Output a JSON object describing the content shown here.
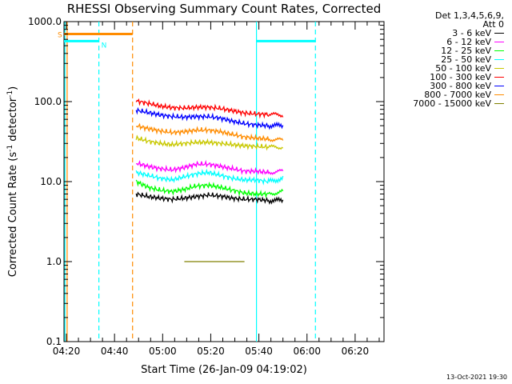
{
  "chart_data": {
    "type": "line",
    "title": "RHESSI Observing Summary Count Rates, Corrected",
    "xlabel": "Start Time (26-Jan-09 04:19:02)",
    "ylabel_main": "Corrected Count Rate (s",
    "ylabel_sup1": "-1",
    "ylabel_mid": " detector",
    "ylabel_sup2": "-1",
    "ylabel_end": ")",
    "y_scale": "log",
    "ylim": [
      0.1,
      1000
    ],
    "xlim_minutes": [
      0,
      133
    ],
    "x_ticks": [
      {
        "label": "04:20",
        "minute": 1
      },
      {
        "label": "04:40",
        "minute": 21
      },
      {
        "label": "05:00",
        "minute": 41
      },
      {
        "label": "05:20",
        "minute": 61
      },
      {
        "label": "05:40",
        "minute": 81
      },
      {
        "label": "06:00",
        "minute": 101
      },
      {
        "label": "06:20",
        "minute": 121
      }
    ],
    "y_ticks": [
      {
        "label": "0.1",
        "value": 0.1
      },
      {
        "label": "1.0",
        "value": 1
      },
      {
        "label": "10.0",
        "value": 10
      },
      {
        "label": "100.0",
        "value": 100
      },
      {
        "label": "1000.0",
        "value": 1000
      }
    ],
    "legend_header": [
      "Det 1,3,4,5,6,9,",
      "Att 0"
    ],
    "legend_position": "right",
    "series": [
      {
        "name": "3 - 6 keV",
        "color": "#000000",
        "values": [
          7.0,
          6.5,
          6.2,
          6.0,
          6.2,
          6.5,
          6.8,
          6.6,
          6.2,
          6.0,
          6.0,
          5.8,
          5.8
        ]
      },
      {
        "name": "6 - 12 keV",
        "color": "#ff00ff",
        "values": [
          17,
          15.5,
          14.5,
          14,
          15,
          16.5,
          16.5,
          15.5,
          14.5,
          13.5,
          13.5,
          13,
          13.5
        ]
      },
      {
        "name": "12 - 25 keV",
        "color": "#00ff00",
        "values": [
          10,
          8.5,
          7.8,
          7.5,
          8.0,
          8.8,
          9.0,
          8.5,
          7.8,
          7.2,
          7.0,
          7.0,
          7.5
        ]
      },
      {
        "name": "25 - 50 keV",
        "color": "#00ffff",
        "values": [
          13,
          12,
          11,
          10.5,
          11.5,
          12.5,
          13,
          12,
          11,
          10.5,
          10.5,
          10,
          11
        ]
      },
      {
        "name": "50 - 100 keV",
        "color": "#c8c800",
        "values": [
          35,
          32,
          30,
          29,
          30,
          31,
          31,
          30,
          29,
          28,
          27.5,
          27,
          27
        ]
      },
      {
        "name": "100 - 300 keV",
        "color": "#ff0000",
        "values": [
          102,
          95,
          88,
          84,
          83,
          85,
          85,
          82,
          77,
          72,
          70,
          69,
          68
        ]
      },
      {
        "name": "300 - 800 keV",
        "color": "#0000ff",
        "values": [
          78,
          73,
          68,
          65,
          64,
          65,
          65,
          62,
          57,
          53,
          51,
          50,
          50
        ]
      },
      {
        "name": "800 - 7000 keV",
        "color": "#ff8c00",
        "values": [
          50,
          46,
          43,
          41,
          42,
          44,
          44,
          42,
          39,
          36,
          35,
          34,
          33
        ]
      },
      {
        "name": "7000 - 15000 keV",
        "color": "#808000",
        "values": [
          null,
          null,
          null,
          null,
          1.0,
          1.0,
          1.0,
          1.0,
          1.0,
          1.0,
          null,
          null,
          null
        ]
      }
    ],
    "series_x_minutes": [
      30,
      35,
      40,
      45,
      50,
      55,
      60,
      65,
      70,
      75,
      80,
      85,
      91
    ],
    "flags": [
      {
        "label": "S",
        "color": "#ff8c00",
        "y_value": 700,
        "x_start_minute": 0,
        "x_end_minute": 28.5
      },
      {
        "label": "N",
        "color": "#00ffff",
        "y_value": 570,
        "x_start_minute": 0,
        "x_end_minute": 14.5
      }
    ],
    "flag_night_end": {
      "color": "#00ffff",
      "y_value": 570,
      "x_start_minute": 80,
      "x_end_minute": 104.5
    },
    "vertical_markers": [
      {
        "color": "#00ffff",
        "style": "solid",
        "minute": 0.4
      },
      {
        "color": "#ff8c00",
        "style": "solid",
        "minute": 1.3
      },
      {
        "color": "#00ffff",
        "style": "dashed",
        "minute": 14.5
      },
      {
        "color": "#ff8c00",
        "style": "dashed",
        "minute": 28.5
      },
      {
        "color": "#00ffff",
        "style": "solid",
        "minute": 80
      },
      {
        "color": "#00ffff",
        "style": "dashed",
        "minute": 104.5
      }
    ]
  },
  "footer": {
    "timestamp": "13-Oct-2021 19:30"
  }
}
